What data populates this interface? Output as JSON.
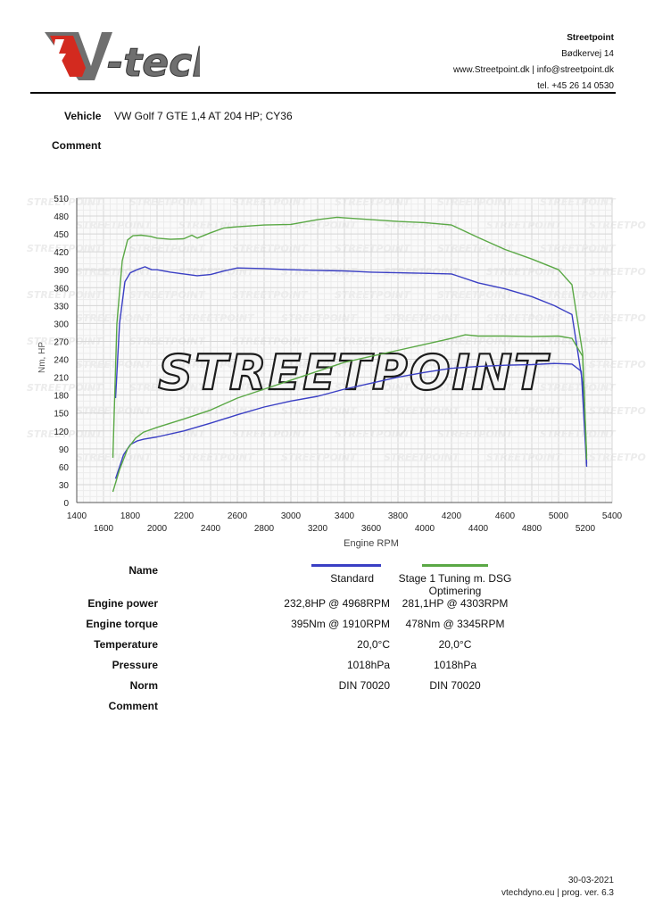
{
  "brand": {
    "logo_text": "V-tech",
    "watermark_text": "STREETPOINT",
    "watermark_small": "STREETPOINT",
    "logo_red": "#d32a1f",
    "logo_grey": "#6f6f6f"
  },
  "company": {
    "name": "Streetpoint",
    "address": "Bødkervej 14",
    "web_email": "www.Streetpoint.dk | info@streetpoint.dk",
    "phone": "tel. +45 26 14 0530"
  },
  "vehicle": {
    "label": "Vehicle",
    "value": "VW Golf 7 GTE 1,4 AT 204 HP; CY36"
  },
  "comment_label": "Comment",
  "chart_data": {
    "type": "line",
    "xlabel": "Engine RPM",
    "ylabel": "Nm, HP",
    "xlim": [
      1400,
      5400
    ],
    "ylim": [
      0,
      510
    ],
    "x_ticks_upper": [
      1400,
      1800,
      2200,
      2600,
      3000,
      3400,
      3800,
      4200,
      4600,
      5000,
      5400
    ],
    "x_ticks_lower": [
      1600,
      2000,
      2400,
      2800,
      3200,
      3600,
      4000,
      4400,
      4800,
      5200
    ],
    "y_ticks": [
      0,
      30,
      60,
      90,
      120,
      150,
      180,
      210,
      240,
      270,
      300,
      330,
      360,
      390,
      420,
      450,
      480,
      510
    ],
    "grid": true,
    "series": [
      {
        "name": "Standard torque",
        "color": "#3a3fc4",
        "x": [
          1690,
          1720,
          1760,
          1800,
          1850,
          1910,
          1960,
          2000,
          2100,
          2200,
          2300,
          2400,
          2500,
          2600,
          2800,
          3000,
          3200,
          3400,
          3600,
          3800,
          4000,
          4200,
          4400,
          4600,
          4800,
          4968,
          5100,
          5180,
          5210
        ],
        "y": [
          175,
          300,
          370,
          385,
          390,
          395,
          390,
          390,
          386,
          383,
          380,
          382,
          388,
          393,
          392,
          390,
          389,
          388,
          386,
          385,
          384,
          383,
          368,
          358,
          345,
          330,
          315,
          200,
          65
        ]
      },
      {
        "name": "Standard power",
        "color": "#3a3fc4",
        "x": [
          1690,
          1750,
          1800,
          1850,
          1900,
          2000,
          2200,
          2400,
          2600,
          2800,
          3000,
          3200,
          3400,
          3600,
          3800,
          4000,
          4200,
          4400,
          4600,
          4800,
          4968,
          5100,
          5170,
          5210
        ],
        "y": [
          40,
          80,
          97,
          103,
          106,
          110,
          120,
          133,
          147,
          160,
          170,
          178,
          190,
          200,
          210,
          218,
          225,
          228,
          230,
          231,
          233,
          232,
          220,
          60
        ]
      },
      {
        "name": "Stage 1 Tuning m. DSG Optimering torque",
        "color": "#5aa845",
        "x": [
          1670,
          1700,
          1740,
          1780,
          1820,
          1880,
          1950,
          2000,
          2100,
          2200,
          2260,
          2300,
          2400,
          2500,
          2600,
          2800,
          3000,
          3200,
          3345,
          3400,
          3600,
          3800,
          4000,
          4200,
          4400,
          4600,
          4800,
          5000,
          5100,
          5180,
          5210
        ],
        "y": [
          75,
          300,
          405,
          440,
          447,
          448,
          446,
          443,
          441,
          442,
          448,
          443,
          452,
          460,
          462,
          465,
          466,
          474,
          478,
          477,
          474,
          471,
          469,
          465,
          444,
          424,
          408,
          390,
          365,
          250,
          72
        ]
      },
      {
        "name": "Stage 1 Tuning m. DSG Optimering power",
        "color": "#5aa845",
        "x": [
          1670,
          1720,
          1780,
          1840,
          1900,
          2000,
          2200,
          2400,
          2600,
          2800,
          3000,
          3200,
          3400,
          3600,
          3800,
          4000,
          4200,
          4303,
          4400,
          4600,
          4800,
          5000,
          5100,
          5180,
          5210
        ],
        "y": [
          18,
          55,
          90,
          108,
          118,
          126,
          140,
          155,
          175,
          190,
          205,
          220,
          235,
          245,
          255,
          265,
          275,
          281,
          279,
          279,
          278,
          279,
          275,
          245,
          78
        ]
      }
    ]
  },
  "results": {
    "rows": {
      "name": {
        "label": "Name",
        "std": "Standard",
        "tuned": "Stage 1 Tuning m. DSG Optimering"
      },
      "power": {
        "label": "Engine power",
        "std": "232,8HP @  4968RPM",
        "tuned": "281,1HP @  4303RPM"
      },
      "torque": {
        "label": "Engine torque",
        "std": "395Nm @ 1910RPM",
        "tuned": "478Nm @ 3345RPM"
      },
      "temperature": {
        "label": "Temperature",
        "std": "20,0°C",
        "tuned": "20,0°C"
      },
      "pressure": {
        "label": "Pressure",
        "std": "1018hPa",
        "tuned": "1018hPa"
      },
      "norm": {
        "label": "Norm",
        "std": "DIN 70020",
        "tuned": "DIN 70020"
      },
      "comment": {
        "label": "Comment",
        "std": "",
        "tuned": ""
      }
    },
    "std_color": "#3a3fc4",
    "tuned_color": "#5aa845"
  },
  "footer": {
    "date": "30-03-2021",
    "software": "vtechdyno.eu | prog. ver. 6.3"
  }
}
